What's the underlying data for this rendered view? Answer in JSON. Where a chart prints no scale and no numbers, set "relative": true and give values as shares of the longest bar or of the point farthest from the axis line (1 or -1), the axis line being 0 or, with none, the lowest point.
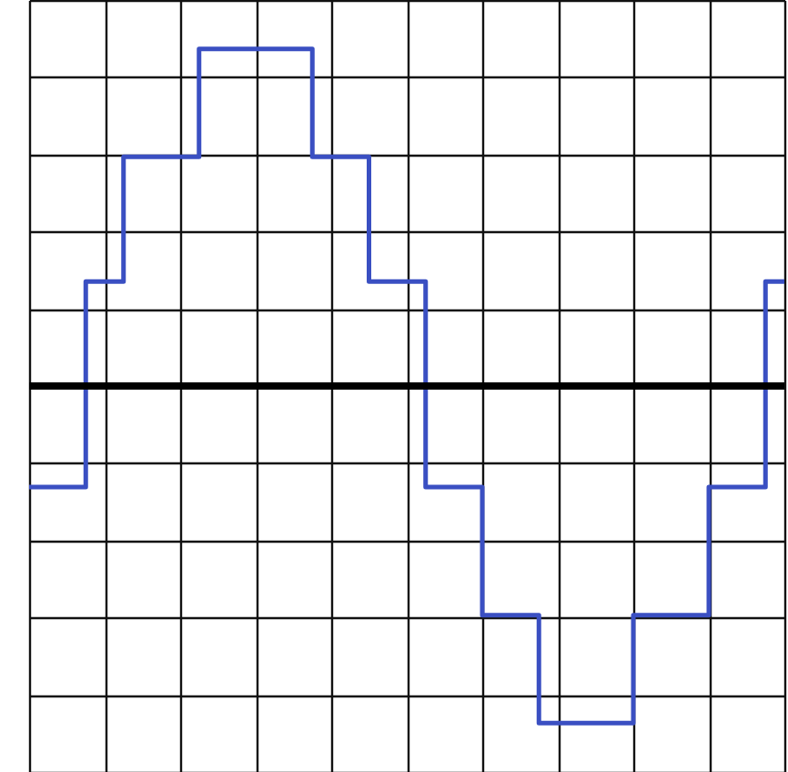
{
  "chart_data": {
    "type": "step",
    "relative": true,
    "grid": true,
    "categories": [
      null,
      null,
      null,
      null,
      null,
      null,
      null,
      null,
      null,
      null,
      null,
      null,
      null,
      null,
      null,
      null,
      null,
      null,
      null,
      null,
      null,
      null,
      null,
      null,
      null,
      null,
      null,
      null,
      null,
      null,
      null,
      null,
      null,
      null,
      null,
      null,
      null,
      null,
      null,
      null,
      null
    ],
    "series": [
      {
        "color": "#3a4fc2",
        "values": [
          -0.3,
          -0.3,
          -0.3,
          0.31,
          0.31,
          0.68,
          0.68,
          0.68,
          0.68,
          1,
          1,
          1,
          1,
          1,
          1,
          0.68,
          0.68,
          0.68,
          0.31,
          0.31,
          0.31,
          -0.3,
          -0.3,
          -0.3,
          -0.68,
          -0.68,
          -0.68,
          -1,
          -1,
          -1,
          -1,
          -1,
          -0.68,
          -0.68,
          -0.68,
          -0.68,
          -0.3,
          -0.3,
          -0.3,
          0.31,
          0.31
        ]
      }
    ]
  }
}
